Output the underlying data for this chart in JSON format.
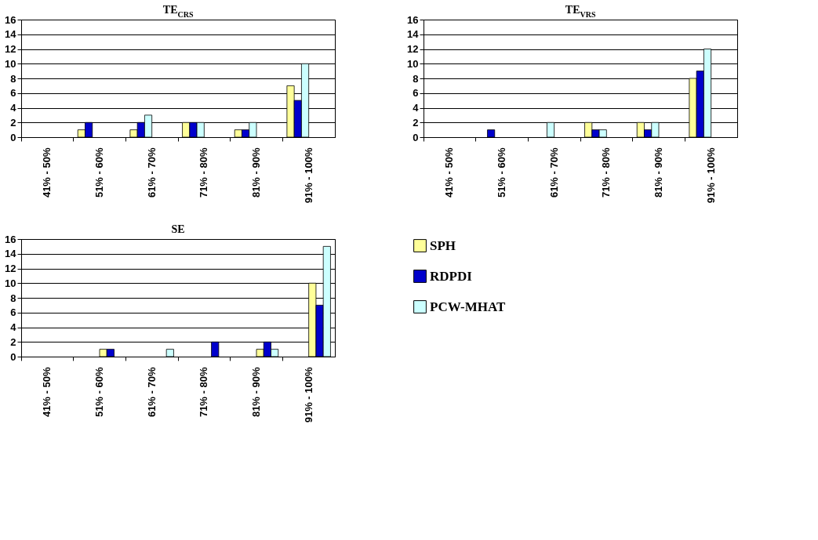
{
  "chart_data": [
    {
      "type": "bar",
      "title": "TE$_{CRS}$",
      "categories": [
        "41% - 50%",
        "51% - 60%",
        "61% - 70%",
        "71% - 80%",
        "81% - 90%",
        "91% - 100%"
      ],
      "series": [
        {
          "color": "#ffff99",
          "values": [
            0,
            1,
            1,
            2,
            1,
            7
          ]
        },
        {
          "color": "#0000cc",
          "values": [
            0,
            2,
            2,
            2,
            1,
            5
          ]
        },
        {
          "color": "#ccffff",
          "values": [
            0,
            0,
            3,
            2,
            2,
            10
          ]
        }
      ],
      "ylim": [
        0,
        16
      ],
      "yticks": [
        0,
        2,
        4,
        6,
        8,
        10,
        12,
        14,
        16
      ],
      "grid": "y",
      "legend": false
    },
    {
      "type": "bar",
      "title": "TE$_{VRS}$",
      "categories": [
        "41% - 50%",
        "51% - 60%",
        "61% - 70%",
        "71% - 80%",
        "81% - 90%",
        "91% - 100%"
      ],
      "series": [
        {
          "color": "#ffff99",
          "values": [
            0,
            0,
            0,
            2,
            2,
            8
          ]
        },
        {
          "color": "#0000cc",
          "values": [
            0,
            1,
            0,
            1,
            1,
            9
          ]
        },
        {
          "color": "#ccffff",
          "values": [
            0,
            0,
            2,
            1,
            2,
            12
          ]
        }
      ],
      "ylim": [
        0,
        16
      ],
      "yticks": [
        0,
        2,
        4,
        6,
        8,
        10,
        12,
        14,
        16
      ],
      "grid": "y",
      "legend": false
    },
    {
      "type": "bar",
      "title": "SE",
      "categories": [
        "41% - 50%",
        "51% - 60%",
        "61% - 70%",
        "71% - 80%",
        "81% - 90%",
        "91% - 100%"
      ],
      "series": [
        {
          "name": "SPH",
          "color": "#ffff99",
          "values": [
            0,
            1,
            0,
            0,
            1,
            10
          ]
        },
        {
          "name": "RDPDI",
          "color": "#0000cc",
          "values": [
            0,
            1,
            0,
            2,
            2,
            7
          ]
        },
        {
          "name": "PCW-MHAT",
          "color": "#ccffff",
          "values": [
            0,
            0,
            1,
            0,
            1,
            15
          ]
        }
      ],
      "ylim": [
        0,
        16
      ],
      "yticks": [
        0,
        2,
        4,
        6,
        8,
        10,
        12,
        14,
        16
      ],
      "grid": "y",
      "legend": "right"
    }
  ]
}
